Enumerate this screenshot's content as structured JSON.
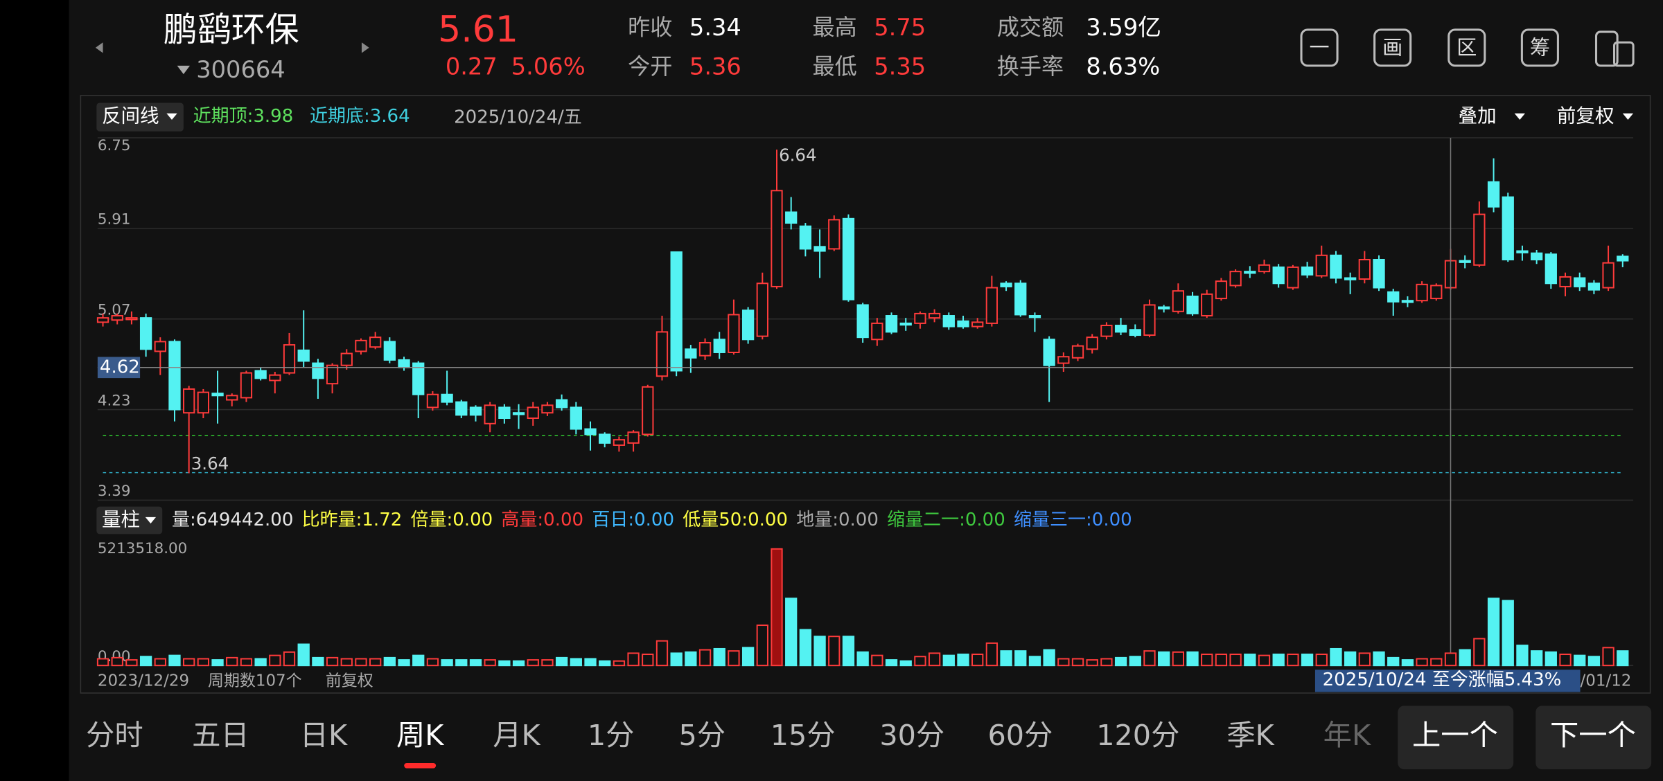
{
  "header": {
    "name": "鹏鹞环保",
    "code": "300664",
    "price": "5.61",
    "change": "0.27",
    "change_pct": "5.06%",
    "stats": [
      {
        "label": "昨收",
        "value": "5.34",
        "color": "#ffffff"
      },
      {
        "label": "今开",
        "value": "5.36",
        "color": "#ff3b3b"
      },
      {
        "label": "最高",
        "value": "5.75",
        "color": "#ff3b3b"
      },
      {
        "label": "最低",
        "value": "5.35",
        "color": "#ff3b3b"
      },
      {
        "label": "成交额",
        "value": "3.59亿",
        "color": "#ffffff"
      },
      {
        "label": "换手率",
        "value": "8.63%",
        "color": "#ffffff"
      }
    ],
    "tools": [
      "一",
      "画",
      "区",
      "筹"
    ]
  },
  "toolbar": {
    "indicator": "反间线",
    "recent_top": "近期顶:3.98",
    "recent_bottom": "近期底:3.64",
    "overlay": "叠加",
    "adjust": "前复权"
  },
  "chart_data": {
    "type": "candlestick",
    "up_color": "#ff3b3b",
    "down_color": "#54f2f2",
    "ylim": [
      3.39,
      6.75
    ],
    "yticks": [
      6.75,
      5.91,
      5.07,
      4.23,
      3.39
    ],
    "grid": true,
    "max_label": 6.64,
    "min_label": 3.64,
    "cursor": {
      "date": "2025/10/24/五",
      "price": 4.62
    },
    "ohlc": [
      [
        5.04,
        5.12,
        5.0,
        5.08
      ],
      [
        5.06,
        5.12,
        5.02,
        5.1
      ],
      [
        5.08,
        5.14,
        5.02,
        5.08
      ],
      [
        5.08,
        5.12,
        4.72,
        4.79
      ],
      [
        4.77,
        4.9,
        4.55,
        4.86
      ],
      [
        4.86,
        4.88,
        4.12,
        4.23
      ],
      [
        4.2,
        4.45,
        3.64,
        4.42
      ],
      [
        4.2,
        4.42,
        4.15,
        4.39
      ],
      [
        4.38,
        4.59,
        4.1,
        4.36
      ],
      [
        4.32,
        4.38,
        4.26,
        4.36
      ],
      [
        4.34,
        4.59,
        4.3,
        4.57
      ],
      [
        4.59,
        4.62,
        4.5,
        4.52
      ],
      [
        4.5,
        4.58,
        4.38,
        4.55
      ],
      [
        4.57,
        4.94,
        4.55,
        4.83
      ],
      [
        4.78,
        5.15,
        4.62,
        4.68
      ],
      [
        4.66,
        4.7,
        4.33,
        4.52
      ],
      [
        4.47,
        4.66,
        4.38,
        4.64
      ],
      [
        4.64,
        4.79,
        4.6,
        4.75
      ],
      [
        4.77,
        4.89,
        4.74,
        4.87
      ],
      [
        4.81,
        4.95,
        4.79,
        4.9
      ],
      [
        4.86,
        4.9,
        4.66,
        4.69
      ],
      [
        4.69,
        4.72,
        4.59,
        4.62
      ],
      [
        4.66,
        4.68,
        4.15,
        4.37
      ],
      [
        4.25,
        4.4,
        4.22,
        4.37
      ],
      [
        4.37,
        4.59,
        4.27,
        4.3
      ],
      [
        4.3,
        4.32,
        4.15,
        4.18
      ],
      [
        4.25,
        4.27,
        4.12,
        4.18
      ],
      [
        4.1,
        4.3,
        4.02,
        4.27
      ],
      [
        4.25,
        4.28,
        4.1,
        4.15
      ],
      [
        4.2,
        4.28,
        4.05,
        4.19
      ],
      [
        4.15,
        4.3,
        4.08,
        4.25
      ],
      [
        4.2,
        4.3,
        4.17,
        4.27
      ],
      [
        4.32,
        4.37,
        4.22,
        4.25
      ],
      [
        4.25,
        4.3,
        4.0,
        4.05
      ],
      [
        4.05,
        4.12,
        3.85,
        4.0
      ],
      [
        4.0,
        4.02,
        3.88,
        3.92
      ],
      [
        3.9,
        3.98,
        3.84,
        3.95
      ],
      [
        3.92,
        4.04,
        3.84,
        4.02
      ],
      [
        4.0,
        4.46,
        3.98,
        4.44
      ],
      [
        4.54,
        5.1,
        4.5,
        4.95
      ],
      [
        5.69,
        5.69,
        4.54,
        4.59
      ],
      [
        4.79,
        4.83,
        4.57,
        4.71
      ],
      [
        4.73,
        4.89,
        4.69,
        4.85
      ],
      [
        4.88,
        4.95,
        4.7,
        4.76
      ],
      [
        4.76,
        5.25,
        4.74,
        5.11
      ],
      [
        5.15,
        5.18,
        4.84,
        4.88
      ],
      [
        4.91,
        5.5,
        4.88,
        5.4
      ],
      [
        5.37,
        6.64,
        5.35,
        6.26
      ],
      [
        6.06,
        6.2,
        5.9,
        5.96
      ],
      [
        5.93,
        5.96,
        5.65,
        5.72
      ],
      [
        5.74,
        5.9,
        5.45,
        5.7
      ],
      [
        5.72,
        6.03,
        5.7,
        5.99
      ],
      [
        6.0,
        6.04,
        5.23,
        5.25
      ],
      [
        5.2,
        5.22,
        4.85,
        4.9
      ],
      [
        4.88,
        5.08,
        4.82,
        5.03
      ],
      [
        5.1,
        5.13,
        4.93,
        4.95
      ],
      [
        5.03,
        5.08,
        4.96,
        5.02
      ],
      [
        5.03,
        5.14,
        4.98,
        5.12
      ],
      [
        5.08,
        5.16,
        5.04,
        5.12
      ],
      [
        5.1,
        5.13,
        4.97,
        5.0
      ],
      [
        5.05,
        5.1,
        4.98,
        5.0
      ],
      [
        5.0,
        5.08,
        4.98,
        5.04
      ],
      [
        5.03,
        5.47,
        5.0,
        5.36
      ],
      [
        5.4,
        5.42,
        5.33,
        5.37
      ],
      [
        5.4,
        5.43,
        5.09,
        5.11
      ],
      [
        5.1,
        5.13,
        4.95,
        5.09
      ],
      [
        4.88,
        4.91,
        4.3,
        4.64
      ],
      [
        4.66,
        4.76,
        4.58,
        4.72
      ],
      [
        4.71,
        4.84,
        4.68,
        4.82
      ],
      [
        4.79,
        4.93,
        4.75,
        4.9
      ],
      [
        4.91,
        5.04,
        4.88,
        5.01
      ],
      [
        5.01,
        5.08,
        4.92,
        4.95
      ],
      [
        4.97,
        5.02,
        4.9,
        4.92
      ],
      [
        4.92,
        5.25,
        4.9,
        5.2
      ],
      [
        5.18,
        5.2,
        5.13,
        5.17
      ],
      [
        5.14,
        5.4,
        5.12,
        5.33
      ],
      [
        5.28,
        5.32,
        5.1,
        5.12
      ],
      [
        5.1,
        5.34,
        5.08,
        5.3
      ],
      [
        5.26,
        5.45,
        5.24,
        5.42
      ],
      [
        5.38,
        5.53,
        5.36,
        5.51
      ],
      [
        5.51,
        5.56,
        5.45,
        5.5
      ],
      [
        5.51,
        5.62,
        5.49,
        5.57
      ],
      [
        5.55,
        5.58,
        5.36,
        5.4
      ],
      [
        5.36,
        5.57,
        5.34,
        5.55
      ],
      [
        5.55,
        5.6,
        5.45,
        5.48
      ],
      [
        5.47,
        5.75,
        5.45,
        5.66
      ],
      [
        5.66,
        5.7,
        5.4,
        5.45
      ],
      [
        5.45,
        5.5,
        5.3,
        5.44
      ],
      [
        5.44,
        5.7,
        5.4,
        5.62
      ],
      [
        5.62,
        5.66,
        5.33,
        5.36
      ],
      [
        5.32,
        5.35,
        5.1,
        5.23
      ],
      [
        5.24,
        5.28,
        5.18,
        5.23
      ],
      [
        5.24,
        5.42,
        5.22,
        5.39
      ],
      [
        5.26,
        5.4,
        5.24,
        5.38
      ],
      [
        5.36,
        5.72,
        5.34,
        5.61
      ],
      [
        5.61,
        5.66,
        5.54,
        5.6
      ],
      [
        5.57,
        6.16,
        5.55,
        6.04
      ],
      [
        6.34,
        6.56,
        6.06,
        6.11
      ],
      [
        6.2,
        6.24,
        5.6,
        5.62
      ],
      [
        5.7,
        5.75,
        5.61,
        5.69
      ],
      [
        5.68,
        5.71,
        5.58,
        5.62
      ],
      [
        5.67,
        5.69,
        5.35,
        5.4
      ],
      [
        5.37,
        5.5,
        5.28,
        5.46
      ],
      [
        5.45,
        5.5,
        5.33,
        5.37
      ],
      [
        5.4,
        5.43,
        5.3,
        5.34
      ],
      [
        5.36,
        5.75,
        5.33,
        5.59
      ],
      [
        5.65,
        5.67,
        5.55,
        5.61
      ]
    ],
    "volume": {
      "ylim": [
        0,
        5213518
      ],
      "yticks": [
        {
          "value": 5213518,
          "label": "5213518.00"
        },
        {
          "value": 0,
          "label": "0.00"
        }
      ],
      "values": [
        300000,
        350000,
        250000,
        400000,
        300000,
        450000,
        300000,
        300000,
        250000,
        350000,
        300000,
        300000,
        450000,
        600000,
        950000,
        350000,
        350000,
        300000,
        300000,
        300000,
        350000,
        250000,
        450000,
        300000,
        250000,
        250000,
        250000,
        250000,
        200000,
        200000,
        250000,
        250000,
        350000,
        300000,
        300000,
        200000,
        200000,
        550000,
        500000,
        1100000,
        550000,
        600000,
        700000,
        750000,
        650000,
        800000,
        1800000,
        5213518,
        3000000,
        1600000,
        1300000,
        1300000,
        1300000,
        600000,
        450000,
        250000,
        200000,
        400000,
        550000,
        450000,
        500000,
        500000,
        1000000,
        650000,
        650000,
        400000,
        700000,
        300000,
        300000,
        250000,
        300000,
        350000,
        400000,
        650000,
        600000,
        600000,
        600000,
        500000,
        500000,
        500000,
        500000,
        450000,
        500000,
        500000,
        500000,
        500000,
        750000,
        600000,
        550000,
        600000,
        350000,
        250000,
        300000,
        300000,
        550000,
        700000,
        1200000,
        3000000,
        2900000,
        900000,
        650000,
        600000,
        500000,
        450000,
        400000,
        800000,
        649442
      ]
    }
  },
  "volume_header": {
    "title": "量柱",
    "items": [
      {
        "text": "量:649442.00",
        "color": "#e6e6e6"
      },
      {
        "text": "比昨量:1.72",
        "color": "#ffff44"
      },
      {
        "text": "倍量:0.00",
        "color": "#ffff44"
      },
      {
        "text": "高量:0.00",
        "color": "#ff3b3b"
      },
      {
        "text": "百日:0.00",
        "color": "#3fb8ff"
      },
      {
        "text": "低量50:0.00",
        "color": "#ffff44"
      },
      {
        "text": "地量:0.00",
        "color": "#aaaaaa"
      },
      {
        "text": "缩量二一:0.00",
        "color": "#3fc93f"
      },
      {
        "text": "缩量三一:0.00",
        "color": "#3f8fff"
      }
    ]
  },
  "footer": {
    "start": "2023/12/29",
    "count": "周期数107个",
    "adjust": "前复权",
    "range": "2025/10/24 至今涨幅5.43%",
    "end": "/01/12"
  },
  "tabs": {
    "items": [
      "分时",
      "五日",
      "日K",
      "周K",
      "月K",
      "1分",
      "5分",
      "15分",
      "30分",
      "60分",
      "120分",
      "季K",
      "年K"
    ],
    "selected": "周K",
    "prev": "上一个",
    "next": "下一个"
  }
}
